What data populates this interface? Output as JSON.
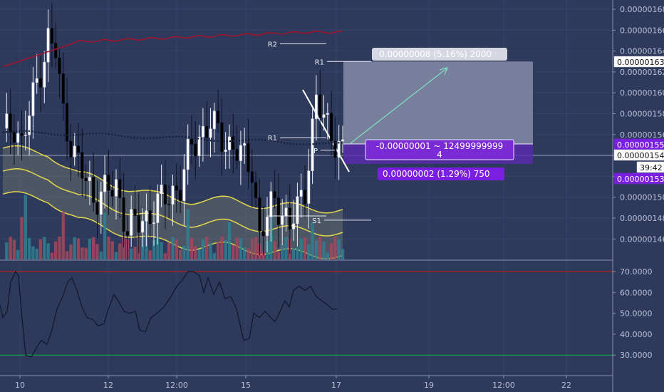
{
  "chart_data": {
    "type": "candlestick",
    "price_axis": {
      "ticks": [
        "0.00000168",
        "0.00000166",
        "0.00000164",
        "0.00000162",
        "0.00000160",
        "0.00000158",
        "0.00000156",
        "0.00000154",
        "0.00000152",
        "0.00000150",
        "0.00000148",
        "0.00000146"
      ],
      "labels": [
        {
          "text": "0.00000163",
          "kind": "white"
        },
        {
          "text": "0.00000155",
          "kind": "purple"
        },
        {
          "text": "0.00000154",
          "kind": "white"
        },
        {
          "text": "39:42",
          "kind": "white"
        },
        {
          "text": "0.00000153",
          "kind": "purple"
        }
      ]
    },
    "rsi_axis": {
      "ticks": [
        "70.0000",
        "60.0000",
        "50.0000",
        "40.0000",
        "30.0000"
      ]
    },
    "time_axis": {
      "ticks": [
        "10",
        "12",
        "12:00",
        "15",
        "17",
        "19",
        "12:00",
        "22"
      ]
    },
    "pivots": [
      "R2",
      "R1",
      "P",
      "S1"
    ],
    "position": {
      "target_label": "R1",
      "target_text": "0.00000008 (5.16%) 2000",
      "entry_text": "-0.00000001 ~ 12499999999",
      "entry_text2": "4",
      "stop_text": "0.00000002 (1.29%) 750"
    },
    "colors": {
      "up": "#ffffff",
      "down": "#000000",
      "bb_upper": "#a0142d",
      "ema": "#16203a",
      "band": "#e6d84a",
      "rsi_upper": "#b71c1c",
      "rsi_lower": "#16a34a",
      "target": "#8d94ae",
      "stop": "#5b2bb0",
      "arrow": "#7ee0c0"
    }
  }
}
